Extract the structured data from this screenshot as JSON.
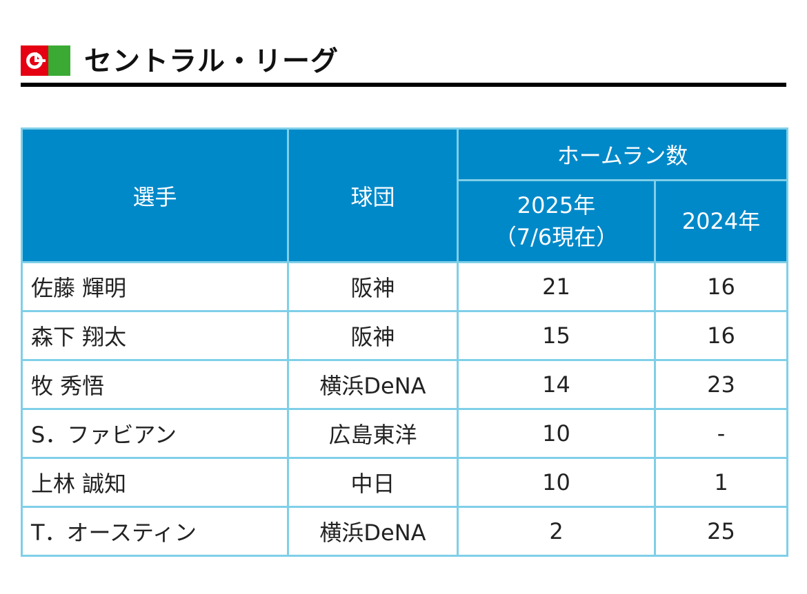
{
  "header": {
    "title": "セントラル・リーグ",
    "logo_colors": {
      "red": "#e50012",
      "green": "#3aaa35"
    }
  },
  "table": {
    "header_color": "#0089c9",
    "border_color": "#7fcfe8",
    "columns": {
      "player": "選手",
      "team": "球団",
      "hr_group": "ホームラン数",
      "y2025_line1": "2025年",
      "y2025_line2": "（7/6現在）",
      "y2024": "2024年"
    },
    "rows": [
      {
        "player": "佐藤 輝明",
        "team": "阪神",
        "hr2025": "21",
        "hr2024": "16"
      },
      {
        "player": "森下 翔太",
        "team": "阪神",
        "hr2025": "15",
        "hr2024": "16"
      },
      {
        "player": "牧 秀悟",
        "team": "横浜DeNA",
        "hr2025": "14",
        "hr2024": "23"
      },
      {
        "player": "S．ファビアン",
        "team": "広島東洋",
        "hr2025": "10",
        "hr2024": "-"
      },
      {
        "player": "上林 誠知",
        "team": "中日",
        "hr2025": "10",
        "hr2024": "1"
      },
      {
        "player": "T．オースティン",
        "team": "横浜DeNA",
        "hr2025": "2",
        "hr2024": "25"
      }
    ]
  }
}
